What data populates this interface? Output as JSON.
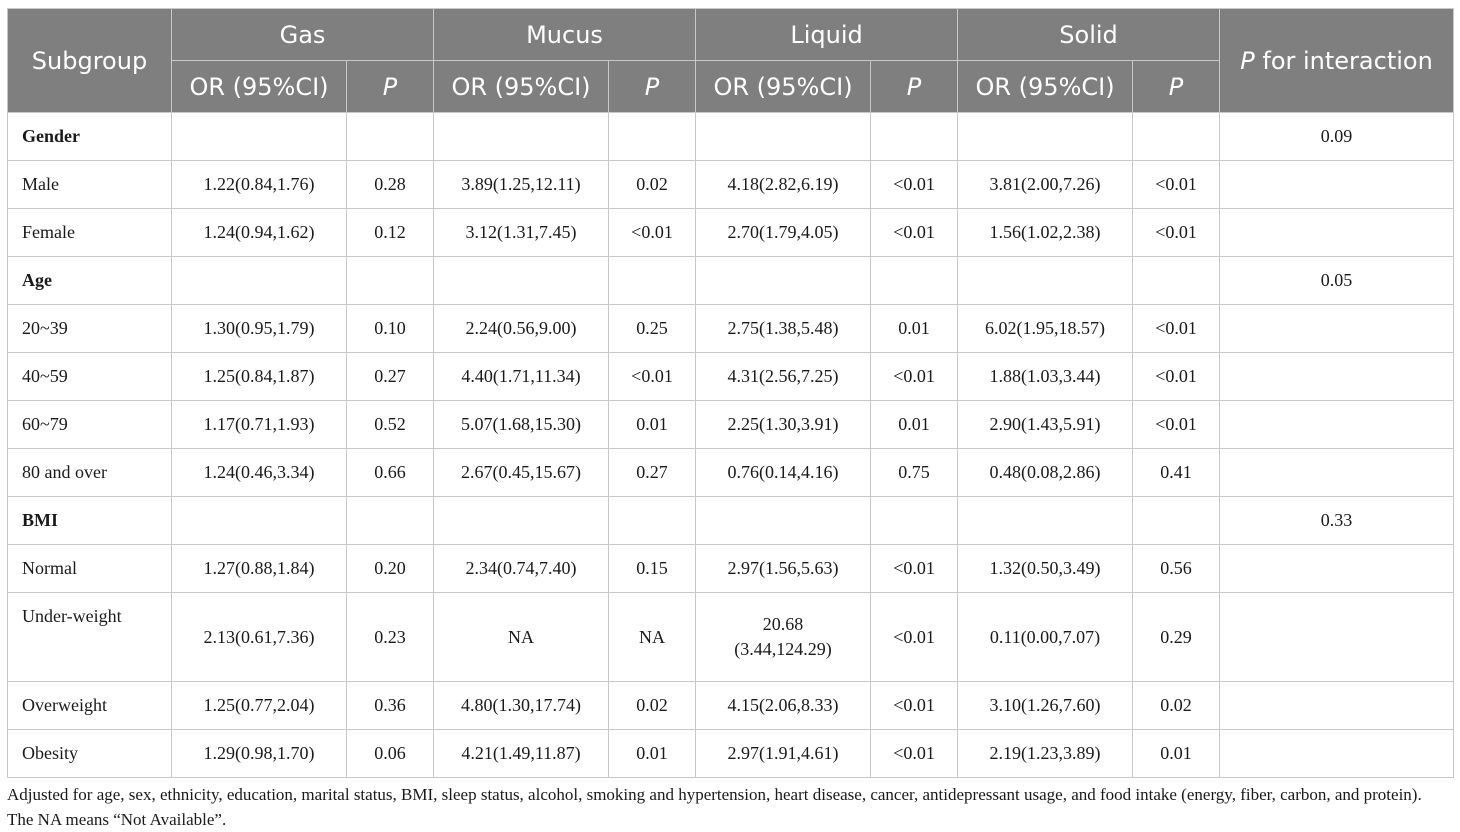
{
  "table": {
    "header": {
      "subgroup": "Subgroup",
      "groups": [
        "Gas",
        "Mucus",
        "Liquid",
        "Solid"
      ],
      "or_label": "OR (95%CI)",
      "p_label": "P",
      "interaction_p": "P",
      "interaction_rest": " for interaction"
    },
    "rows": [
      {
        "label": "Gender",
        "section": true,
        "cells": [
          "",
          "",
          "",
          "",
          "",
          "",
          "",
          ""
        ],
        "interaction": "0.09"
      },
      {
        "label": "Male",
        "section": false,
        "cells": [
          "1.22(0.84,1.76)",
          "0.28",
          "3.89(1.25,12.11)",
          "0.02",
          "4.18(2.82,6.19)",
          "<0.01",
          "3.81(2.00,7.26)",
          "<0.01"
        ],
        "interaction": ""
      },
      {
        "label": "Female",
        "section": false,
        "cells": [
          "1.24(0.94,1.62)",
          "0.12",
          "3.12(1.31,7.45)",
          "<0.01",
          "2.70(1.79,4.05)",
          "<0.01",
          "1.56(1.02,2.38)",
          "<0.01"
        ],
        "interaction": ""
      },
      {
        "label": "Age",
        "section": true,
        "cells": [
          "",
          "",
          "",
          "",
          "",
          "",
          "",
          ""
        ],
        "interaction": "0.05"
      },
      {
        "label": "20~39",
        "section": false,
        "cells": [
          "1.30(0.95,1.79)",
          "0.10",
          "2.24(0.56,9.00)",
          "0.25",
          "2.75(1.38,5.48)",
          "0.01",
          "6.02(1.95,18.57)",
          "<0.01"
        ],
        "interaction": ""
      },
      {
        "label": "40~59",
        "section": false,
        "cells": [
          "1.25(0.84,1.87)",
          "0.27",
          "4.40(1.71,11.34)",
          "<0.01",
          "4.31(2.56,7.25)",
          "<0.01",
          "1.88(1.03,3.44)",
          "<0.01"
        ],
        "interaction": ""
      },
      {
        "label": "60~79",
        "section": false,
        "cells": [
          "1.17(0.71,1.93)",
          "0.52",
          "5.07(1.68,15.30)",
          "0.01",
          "2.25(1.30,3.91)",
          "0.01",
          "2.90(1.43,5.91)",
          "<0.01"
        ],
        "interaction": ""
      },
      {
        "label": "80 and over",
        "section": false,
        "cells": [
          "1.24(0.46,3.34)",
          "0.66",
          "2.67(0.45,15.67)",
          "0.27",
          "0.76(0.14,4.16)",
          "0.75",
          "0.48(0.08,2.86)",
          "0.41"
        ],
        "interaction": ""
      },
      {
        "label": "BMI",
        "section": true,
        "cells": [
          "",
          "",
          "",
          "",
          "",
          "",
          "",
          ""
        ],
        "interaction": "0.33"
      },
      {
        "label": "Normal",
        "section": false,
        "cells": [
          "1.27(0.88,1.84)",
          "0.20",
          "2.34(0.74,7.40)",
          "0.15",
          "2.97(1.56,5.63)",
          "<0.01",
          "1.32(0.50,3.49)",
          "0.56"
        ],
        "interaction": ""
      },
      {
        "label": "Under-weight",
        "section": false,
        "tall": true,
        "cells": [
          "2.13(0.61,7.36)",
          "0.23",
          "NA",
          "NA",
          "20.68\n(3.44,124.29)",
          "<0.01",
          "0.11(0.00,7.07)",
          "0.29"
        ],
        "interaction": ""
      },
      {
        "label": "Overweight",
        "section": false,
        "cells": [
          "1.25(0.77,2.04)",
          "0.36",
          "4.80(1.30,17.74)",
          "0.02",
          "4.15(2.06,8.33)",
          "<0.01",
          "3.10(1.26,7.60)",
          "0.02"
        ],
        "interaction": ""
      },
      {
        "label": "Obesity",
        "section": false,
        "cells": [
          "1.29(0.98,1.70)",
          "0.06",
          "4.21(1.49,11.87)",
          "0.01",
          "2.97(1.91,4.61)",
          "<0.01",
          "2.19(1.23,3.89)",
          "0.01"
        ],
        "interaction": ""
      }
    ]
  },
  "footnote": {
    "line1": "Adjusted for age, sex, ethnicity, education, marital status, BMI, sleep status, alcohol, smoking and hypertension, heart disease, cancer, antidepressant usage, and food intake (energy, fiber, carbon, and protein).",
    "line2": "The NA means “Not Available”."
  }
}
